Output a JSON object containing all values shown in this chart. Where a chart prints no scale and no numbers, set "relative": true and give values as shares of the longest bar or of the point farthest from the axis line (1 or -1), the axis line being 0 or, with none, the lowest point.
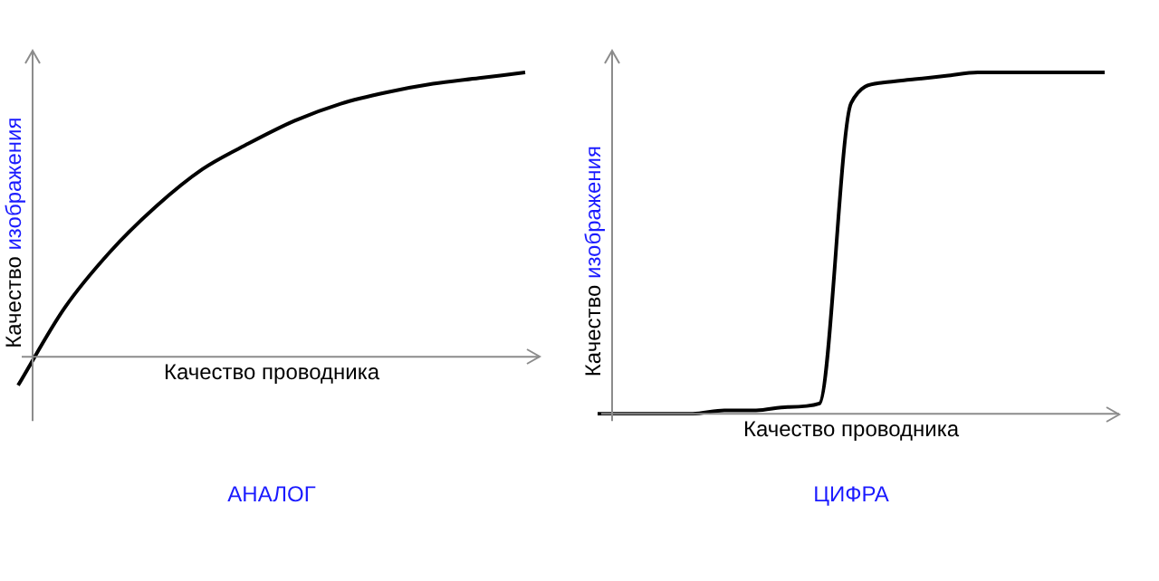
{
  "chart_data": [
    {
      "type": "line",
      "title": "АНАЛОГ",
      "xlabel": "Качество проводника",
      "ylabel": "Качество изображения",
      "relative": true,
      "categories": [
        null,
        null,
        null,
        null,
        null,
        null,
        null,
        null,
        null,
        null,
        null,
        null
      ],
      "values": [
        -0.1,
        0.17,
        0.37,
        0.53,
        0.66,
        0.75,
        0.83,
        0.89,
        0.93,
        0.96,
        0.98,
        1
      ],
      "color": "#000000",
      "marker": "none"
    },
    {
      "type": "line",
      "title": "ЦИФРА",
      "xlabel": "Качество проводника",
      "ylabel": "Качество изображения",
      "relative": true,
      "categories": [
        null,
        null,
        null,
        null,
        null,
        null,
        null,
        null,
        null,
        null,
        null,
        null,
        null,
        null,
        null,
        null,
        null
      ],
      "values": [
        0,
        0,
        0,
        0,
        0.01,
        0.01,
        0.02,
        0.03,
        0.91,
        0.97,
        0.98,
        0.99,
        1,
        1,
        1,
        1,
        1
      ],
      "color": "#000000",
      "marker": "none"
    }
  ]
}
